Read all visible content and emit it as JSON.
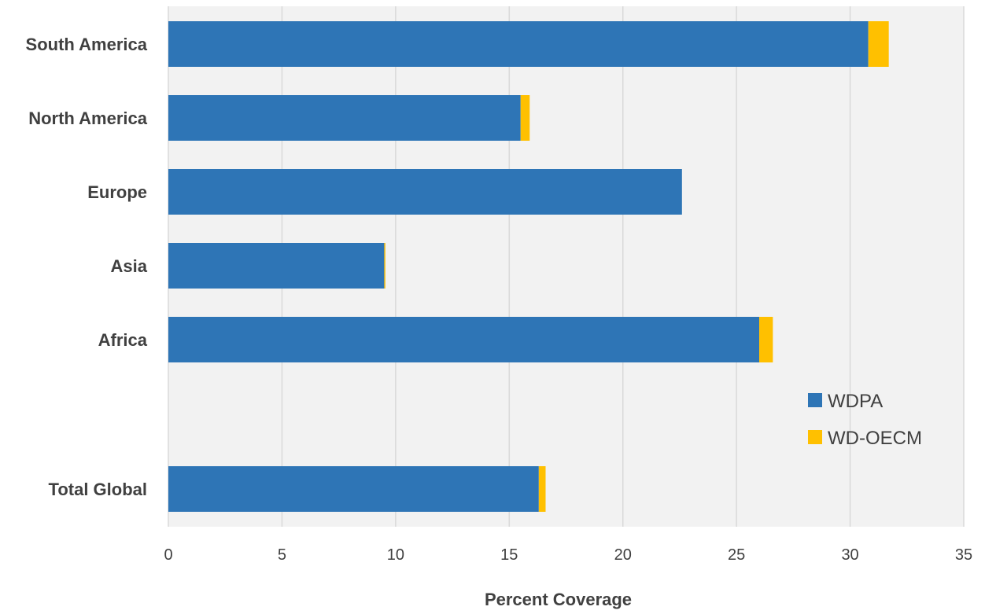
{
  "chart_data": {
    "type": "bar",
    "orientation": "horizontal",
    "stacked": true,
    "title": "",
    "xlabel": "Percent Coverage",
    "ylabel": "",
    "xlim": [
      0,
      35
    ],
    "xticks": [
      0,
      5,
      10,
      15,
      20,
      25,
      30,
      35
    ],
    "xtick_labels": [
      "0",
      "5",
      "10",
      "15",
      "20",
      "25",
      "30",
      "35"
    ],
    "grid": "vertical",
    "legend_position": "right",
    "categories": [
      "South America",
      "North America",
      "Europe",
      "Asia",
      "Africa",
      "Total Global"
    ],
    "series": [
      {
        "name": "WDPA",
        "color": "#2E75B6",
        "values": [
          30.8,
          15.5,
          22.6,
          9.5,
          26.0,
          16.3
        ]
      },
      {
        "name": "WD-OECM",
        "color": "#FFC000",
        "values": [
          0.9,
          0.4,
          0.0,
          0.05,
          0.6,
          0.3
        ]
      }
    ],
    "colors": {
      "plot_background": "#F2F2F2",
      "gridline": "#D9D9D9",
      "text": "#404040"
    }
  }
}
